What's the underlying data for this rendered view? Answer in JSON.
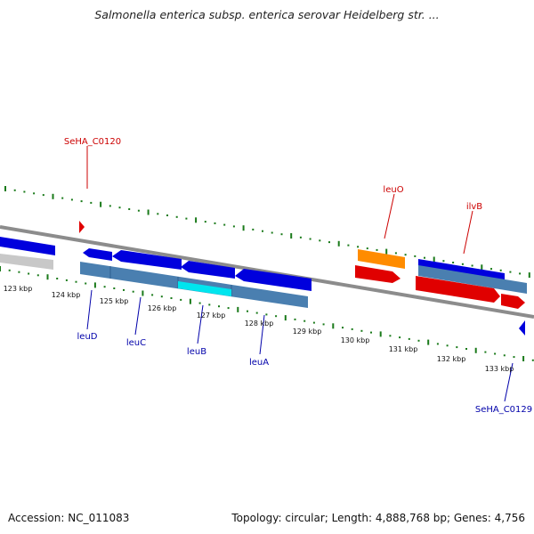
{
  "title": "Salmonella enterica subsp. enterica serovar Heidelberg str. ...",
  "footer": {
    "accession": "Accession: NC_011083",
    "summary": "Topology: circular; Length: 4,888,768 bp; Genes: 4,756"
  },
  "colors": {
    "backbone": "#8c8c8c",
    "tick": "#1a7a1a",
    "forward_gene": "#e00000",
    "reverse_gene": "#0000dd",
    "feature_label_red": "#cc0000",
    "feature_label_blue": "#0000aa",
    "cds_track": "#4a7fb0",
    "highlight": "#00e5ee",
    "orange_gene": "#ff8c00",
    "pseudo": "#c8c8c8"
  },
  "axis": {
    "unit": "kbp",
    "ticks": [
      "123 kbp",
      "124 kbp",
      "125 kbp",
      "126 kbp",
      "127 kbp",
      "128 kbp",
      "129 kbp",
      "130 kbp",
      "131 kbp",
      "132 kbp",
      "133 kbp"
    ]
  },
  "labels": {
    "SeHA_C0120": "SeHA_C0120",
    "leuO": "leuO",
    "ilvB": "ilvB",
    "leuD": "leuD",
    "leuC": "leuC",
    "leuB": "leuB",
    "leuA": "leuA",
    "SeHA_C0129": "SeHA_C0129"
  }
}
